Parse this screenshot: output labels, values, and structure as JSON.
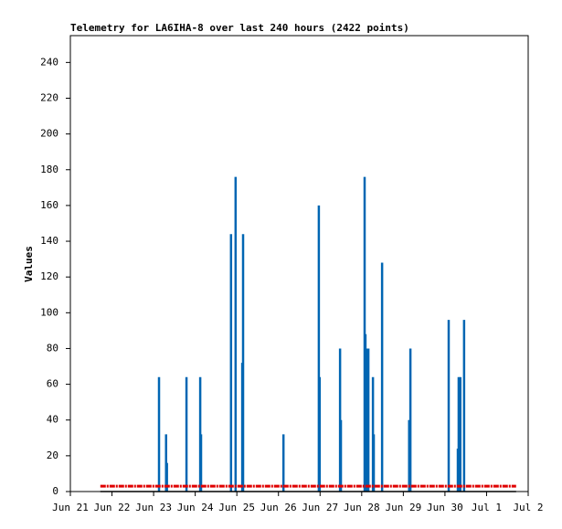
{
  "chart_data": {
    "type": "line",
    "title": "Telemetry for LA6IHA-8 over last 240 hours (2422 points)",
    "ylabel": "Values",
    "xlim": [
      0,
      11
    ],
    "ylim": [
      0,
      255
    ],
    "xticks": [
      {
        "value": 0,
        "label": "Jun 21"
      },
      {
        "value": 1,
        "label": "Jun 22"
      },
      {
        "value": 2,
        "label": "Jun 23"
      },
      {
        "value": 3,
        "label": "Jun 24"
      },
      {
        "value": 4,
        "label": "Jun 25"
      },
      {
        "value": 5,
        "label": "Jun 26"
      },
      {
        "value": 6,
        "label": "Jun 27"
      },
      {
        "value": 7,
        "label": "Jun 28"
      },
      {
        "value": 8,
        "label": "Jun 29"
      },
      {
        "value": 9,
        "label": "Jun 30"
      },
      {
        "value": 10,
        "label": "Jul 1"
      },
      {
        "value": 11,
        "label": "Jul 2"
      }
    ],
    "yticks": [
      0,
      20,
      40,
      60,
      80,
      100,
      120,
      140,
      160,
      180,
      200,
      220,
      240
    ],
    "grid": false,
    "series": [
      {
        "color": "#0066b3",
        "style": "spike",
        "x": [
          2.13,
          2.3,
          2.32,
          2.79,
          3.12,
          3.14,
          3.86,
          3.97,
          4.13,
          4.15,
          5.12,
          5.97,
          5.99,
          6.48,
          6.5,
          7.07,
          7.09,
          7.13,
          7.16,
          7.27,
          7.29,
          7.49,
          8.14,
          8.17,
          9.09,
          9.31,
          9.33,
          9.37,
          9.46
        ],
        "values": [
          64,
          32,
          16,
          64,
          64,
          32,
          144,
          176,
          72,
          144,
          32,
          160,
          64,
          80,
          40,
          176,
          88,
          80,
          80,
          64,
          32,
          128,
          40,
          80,
          96,
          24,
          64,
          64,
          96
        ]
      },
      {
        "color": "#e00000",
        "style": "dashed",
        "x": [
          0.72,
          10.71
        ],
        "values": [
          3,
          3
        ]
      },
      {
        "color": "#000000",
        "style": "line",
        "x": [
          0.72,
          10.71
        ],
        "values": [
          0,
          0
        ]
      }
    ]
  }
}
